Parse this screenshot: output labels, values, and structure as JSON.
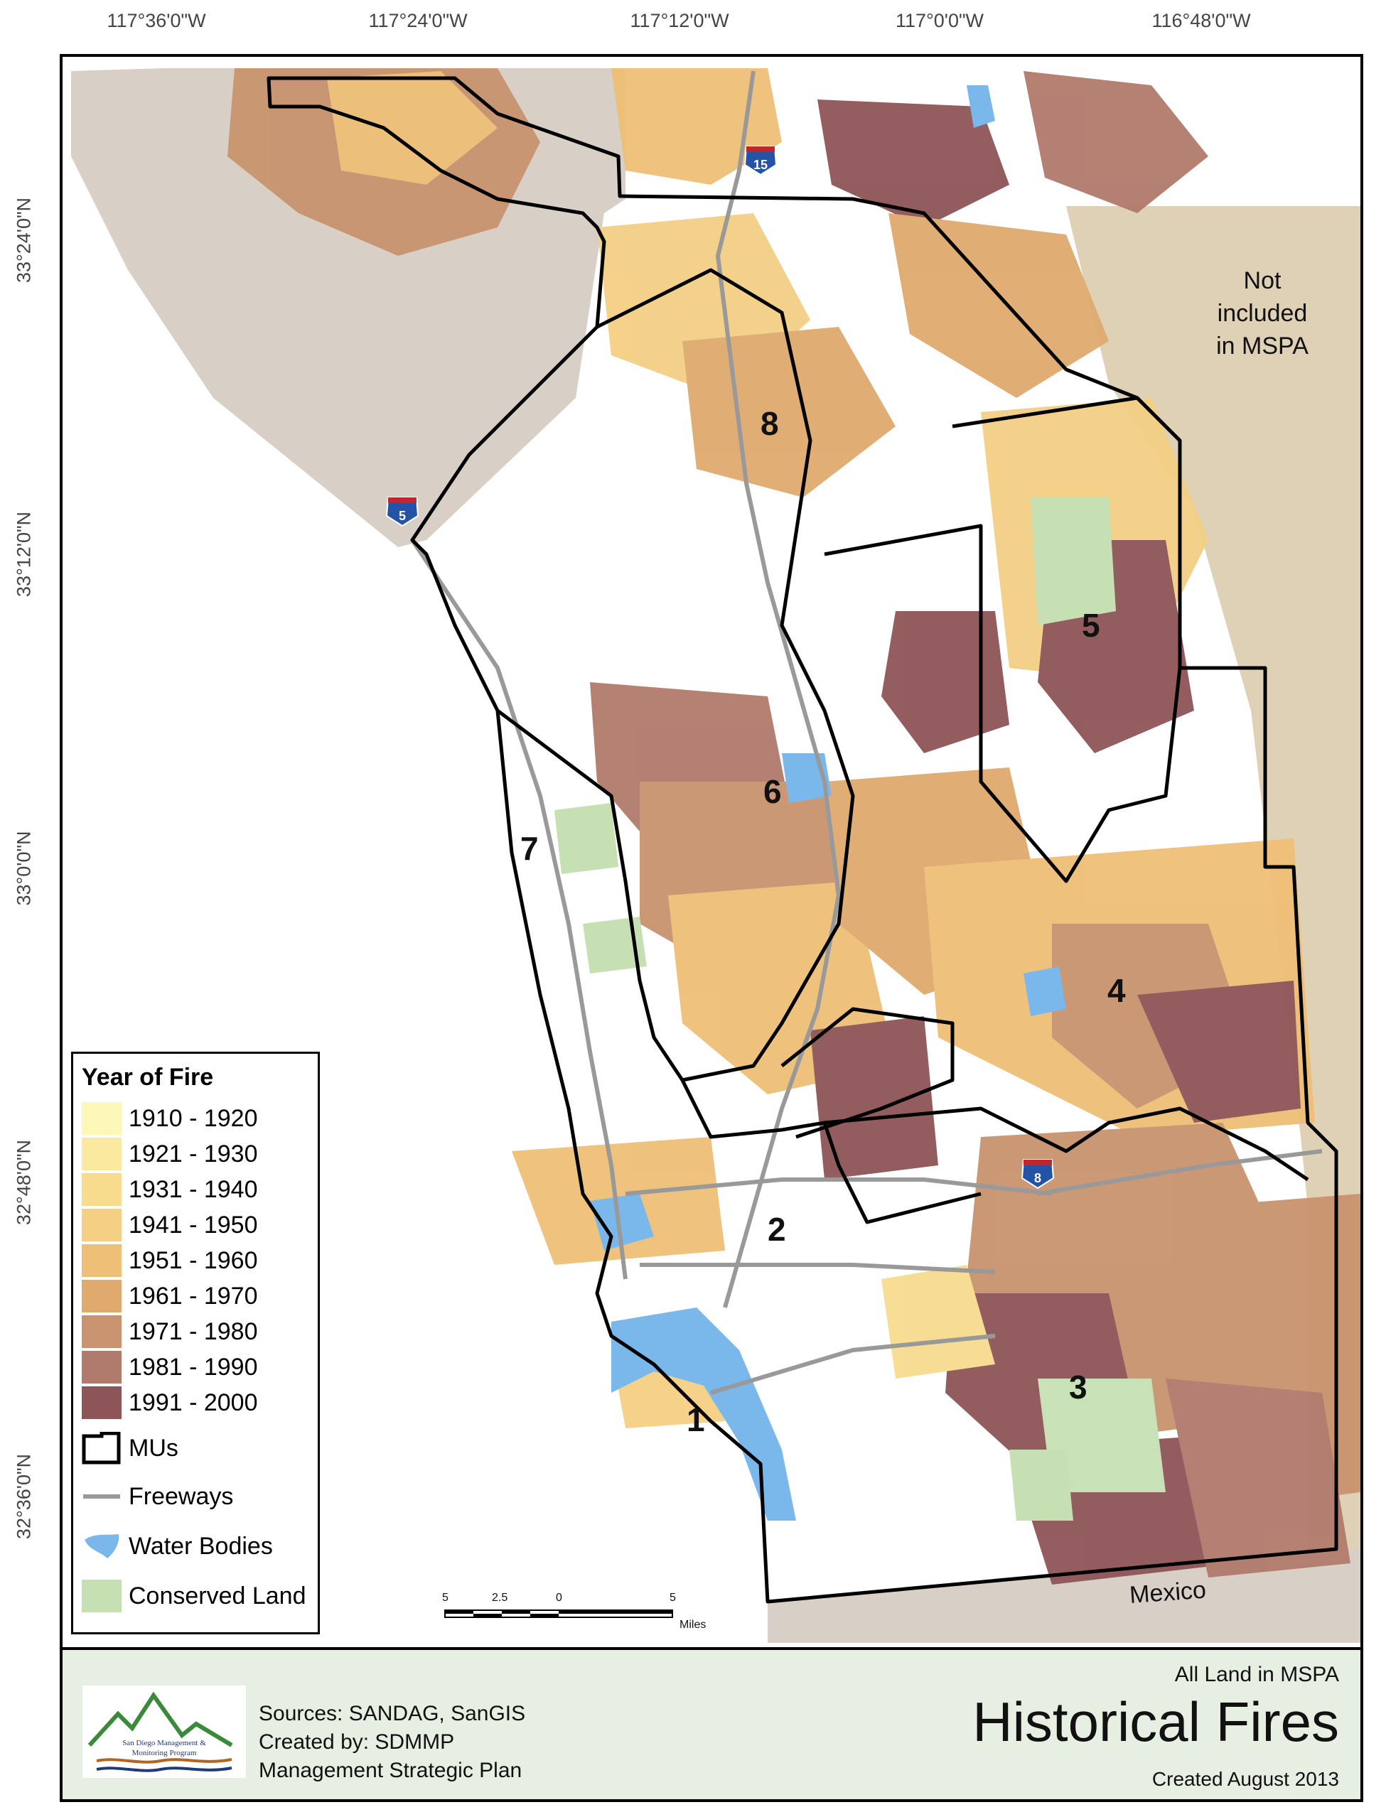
{
  "title": "Historical Fires",
  "subtitle": "All Land in MSPA",
  "created": "Created August 2013",
  "credits": [
    "Sources: SANDAG, SanGIS",
    "Created by: SDMMP",
    "Management Strategic Plan"
  ],
  "logo_text": [
    "San Diego Management &",
    "Monitoring Program"
  ],
  "longitude_labels": [
    "117°36'0\"W",
    "117°24'0\"W",
    "117°12'0\"W",
    "117°0'0\"W",
    "116°48'0\"W"
  ],
  "latitude_labels": [
    "33°24'0\"N",
    "33°12'0\"N",
    "33°0'0\"N",
    "32°48'0\"N",
    "32°36'0\"N"
  ],
  "legend": {
    "title": "Year of Fire",
    "classes": [
      {
        "label": "1910 - 1920",
        "color": "#fdf7b8"
      },
      {
        "label": "1921 - 1930",
        "color": "#fbe9a0"
      },
      {
        "label": "1931 - 1940",
        "color": "#f7dc8e"
      },
      {
        "label": "1941 - 1950",
        "color": "#f4cf84"
      },
      {
        "label": "1951 - 1960",
        "color": "#eebf76"
      },
      {
        "label": "1961 - 1970",
        "color": "#dfaa6e"
      },
      {
        "label": "1971 - 1980",
        "color": "#c8936e"
      },
      {
        "label": "1981 - 1990",
        "color": "#b07a6c"
      },
      {
        "label": "1991 - 2000",
        "color": "#8e5558"
      }
    ],
    "symbols": [
      {
        "label": "MUs",
        "icon": "mu-boundary-icon"
      },
      {
        "label": "Freeways",
        "icon": "freeway-line-icon",
        "color": "#999999"
      },
      {
        "label": "Water Bodies",
        "icon": "water-body-icon",
        "color": "#7ab8ec"
      },
      {
        "label": "Conserved Land",
        "icon": "conserved-land-icon",
        "color": "#c6e0b4"
      }
    ]
  },
  "management_units": [
    "1",
    "2",
    "3",
    "4",
    "5",
    "6",
    "7",
    "8"
  ],
  "map_annotations": {
    "not_included": [
      "Not",
      "included",
      "in MSPA"
    ],
    "mexico": "Mexico",
    "interstate_shields": [
      "15",
      "5",
      "8"
    ]
  },
  "scale_bar": {
    "ticks": [
      "5",
      "2.5",
      "0",
      "5"
    ],
    "unit": "Miles"
  }
}
